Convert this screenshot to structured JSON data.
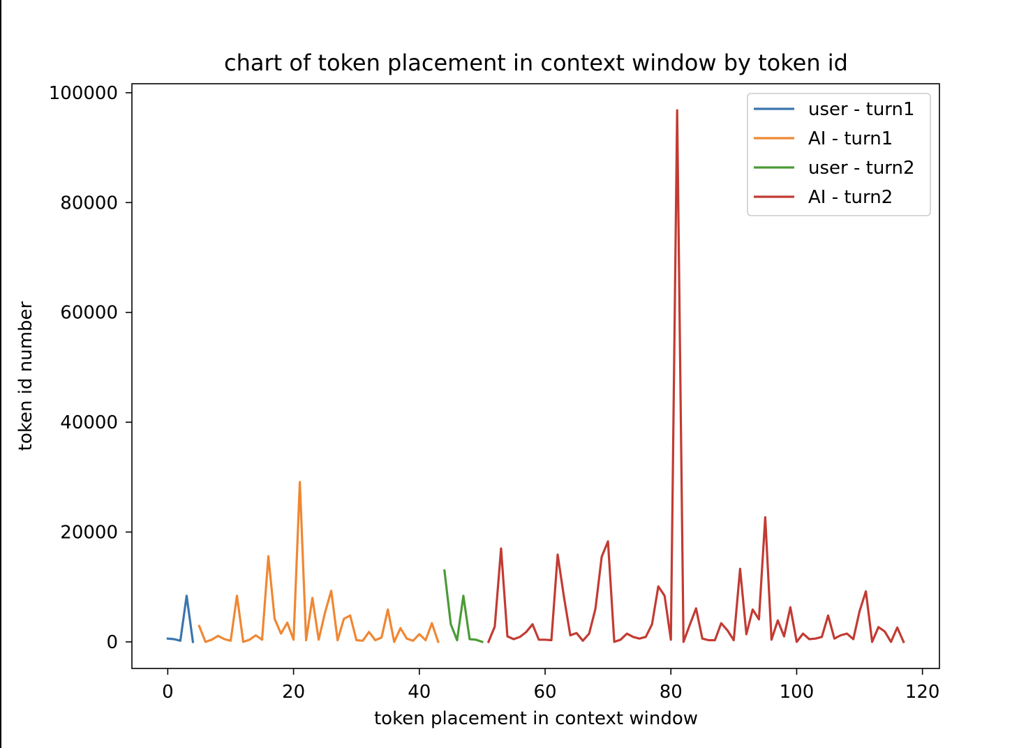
{
  "chart_data": {
    "type": "line",
    "title": "chart of token placement in context window by token id",
    "xlabel": "token placement in context window",
    "ylabel": "token id number",
    "xlim": [
      -5.7,
      122.7
    ],
    "ylim": [
      -4840,
      101640
    ],
    "xticks": [
      0,
      20,
      40,
      60,
      80,
      100,
      120
    ],
    "yticks": [
      0,
      20000,
      40000,
      60000,
      80000,
      100000
    ],
    "grid": false,
    "legend_position": "upper right",
    "series": [
      {
        "name": "user - turn1",
        "color": "#3a75ad",
        "x": [
          0,
          1,
          2,
          3,
          4
        ],
        "y": [
          600,
          500,
          200,
          8400,
          0
        ]
      },
      {
        "name": "AI - turn1",
        "color": "#ef8733",
        "x": [
          5,
          6,
          7,
          8,
          9,
          10,
          11,
          12,
          13,
          14,
          15,
          16,
          17,
          18,
          19,
          20,
          21,
          22,
          23,
          24,
          25,
          26,
          27,
          28,
          29,
          30,
          31,
          32,
          33,
          34,
          35,
          36,
          37,
          38,
          39,
          40,
          41,
          42,
          43
        ],
        "y": [
          2900,
          0,
          400,
          1100,
          500,
          200,
          8400,
          0,
          400,
          1200,
          400,
          15600,
          4200,
          1500,
          3500,
          400,
          29100,
          300,
          8000,
          400,
          5300,
          9300,
          300,
          4200,
          4800,
          300,
          200,
          1800,
          300,
          800,
          5900,
          0,
          2500,
          600,
          200,
          1400,
          300,
          3400,
          0
        ]
      },
      {
        "name": "user - turn2",
        "color": "#4b9b37",
        "x": [
          44,
          45,
          46,
          47,
          48,
          49,
          50
        ],
        "y": [
          13000,
          3200,
          300,
          8400,
          500,
          400,
          0
        ]
      },
      {
        "name": "AI - turn2",
        "color": "#c23b33",
        "x": [
          51,
          52,
          53,
          54,
          55,
          56,
          57,
          58,
          59,
          60,
          61,
          62,
          63,
          64,
          65,
          66,
          67,
          68,
          69,
          70,
          71,
          72,
          73,
          74,
          75,
          76,
          77,
          78,
          79,
          80,
          81,
          82,
          83,
          84,
          85,
          86,
          87,
          88,
          89,
          90,
          91,
          92,
          93,
          94,
          95,
          96,
          97,
          98,
          99,
          100,
          101,
          102,
          103,
          104,
          105,
          106,
          107,
          108,
          109,
          110,
          111,
          112,
          113,
          114,
          115,
          116,
          117
        ],
        "y": [
          0,
          2800,
          17000,
          1000,
          500,
          900,
          1800,
          3200,
          400,
          400,
          300,
          15900,
          8200,
          1200,
          1600,
          200,
          1500,
          6000,
          15500,
          18300,
          0,
          400,
          1500,
          900,
          600,
          900,
          3200,
          10100,
          8400,
          400,
          96800,
          0,
          3100,
          6100,
          600,
          300,
          300,
          3400,
          2100,
          300,
          13300,
          1400,
          5900,
          4100,
          22700,
          400,
          3900,
          1000,
          6300,
          0,
          1500,
          500,
          600,
          900,
          4800,
          600,
          1200,
          1500,
          500,
          5600,
          9200,
          0,
          2700,
          1900,
          0,
          2600,
          0
        ]
      }
    ]
  }
}
